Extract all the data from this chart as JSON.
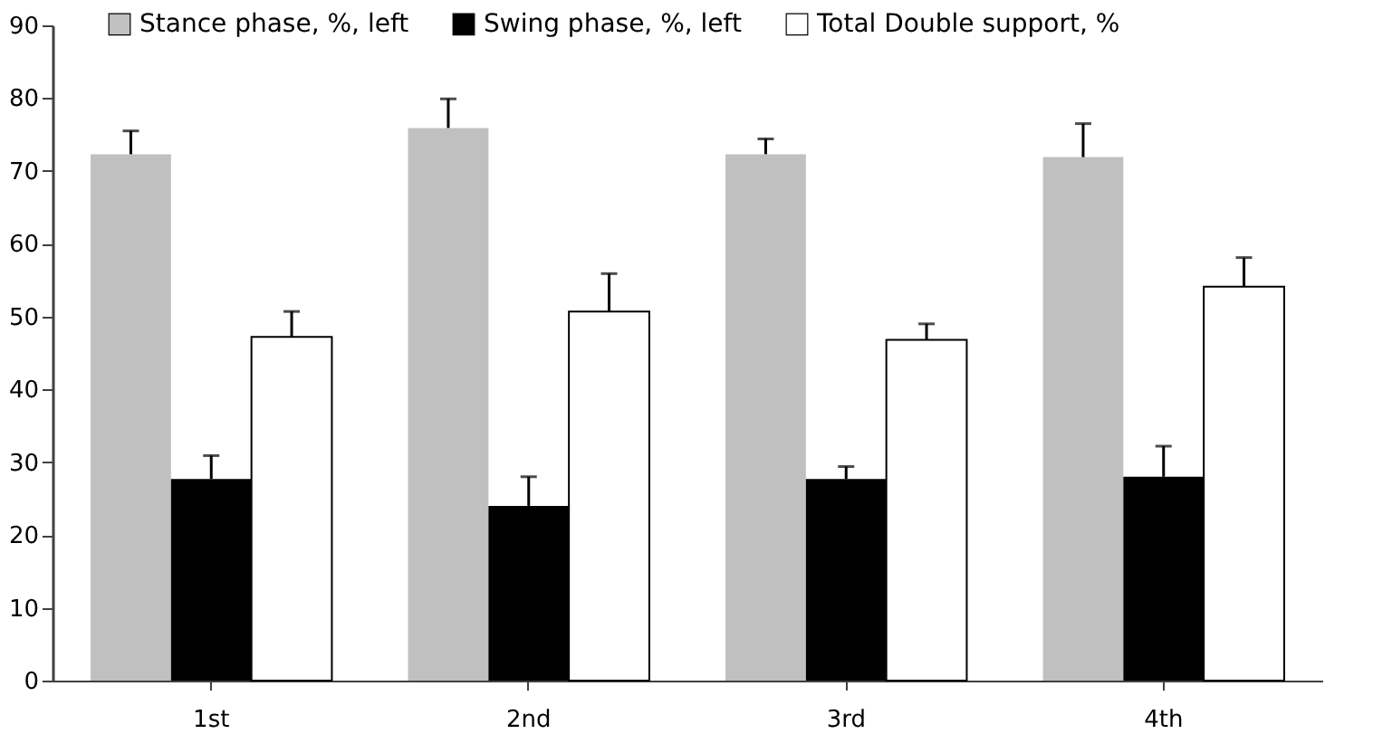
{
  "chart_data": {
    "type": "bar",
    "categories": [
      "1st",
      "2nd",
      "3rd",
      "4th"
    ],
    "series": [
      {
        "name": "Stance phase, %, left",
        "color": "#c0c0c0",
        "values": [
          72.3,
          75.9,
          72.3,
          71.9
        ],
        "errors": [
          [
            72.3,
            75.5
          ],
          [
            75.9,
            79.9
          ],
          [
            72.3,
            74.4
          ],
          [
            71.9,
            76.5
          ]
        ]
      },
      {
        "name": "Swing phase, %, left",
        "color": "#000000",
        "values": [
          27.7,
          24.0,
          27.7,
          28.0
        ],
        "errors": [
          [
            27.7,
            30.9
          ],
          [
            24.0,
            28.0
          ],
          [
            27.7,
            29.4
          ],
          [
            28.0,
            32.2
          ]
        ]
      },
      {
        "name": "Total Double support, %",
        "color": "#ffffff",
        "values": [
          47.2,
          50.7,
          46.8,
          54.1
        ],
        "errors": [
          [
            47.2,
            50.7
          ],
          [
            50.7,
            55.9
          ],
          [
            46.8,
            49.0
          ],
          [
            54.1,
            58.1
          ]
        ]
      }
    ],
    "ylim": [
      0,
      90
    ],
    "yticks": [
      0,
      10,
      20,
      30,
      40,
      50,
      60,
      70,
      80,
      90
    ],
    "grid": false,
    "legend": "top"
  }
}
